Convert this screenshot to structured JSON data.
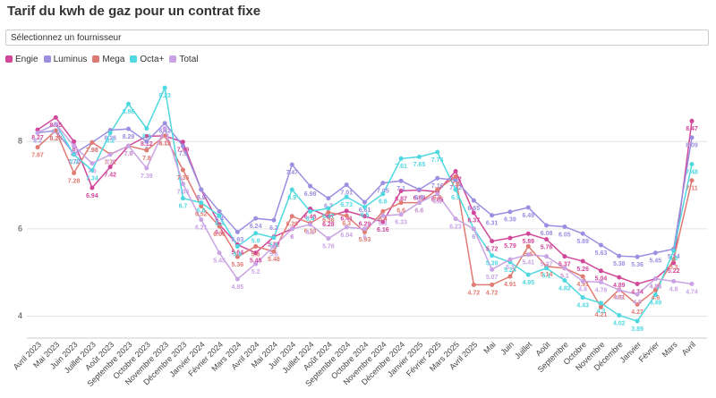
{
  "chart_data": {
    "type": "line",
    "title": "Tarif du kwh de gaz pour un contrat fixe",
    "select_placeholder": "Sélectionnez un fournisseur",
    "categories": [
      "Avril 2023",
      "Mai 2023",
      "Juin 2023",
      "Juillet 2023",
      "Août 2023",
      "Septembre 2023",
      "Octobre 2023",
      "Novembre 2023",
      "Décembre 2023",
      "Janvier 2024",
      "Février 2024",
      "Mars 2024",
      "Avril 2024",
      "Mai 2024",
      "Juin 2024",
      "Juillet 2024",
      "Août 2024",
      "Septembre 2024",
      "Octobre 2024",
      "Novembre 2024",
      "Décembre 2024",
      "Janvier 2025",
      "Février 2025",
      "Mars 2025",
      "Avril 2025",
      "Mai",
      "Juin",
      "Juillet",
      "Août",
      "Septembre",
      "Octobre",
      "Novembre",
      "Décembre",
      "Janvier",
      "Février",
      "Mars",
      "Avril"
    ],
    "ylim": [
      3.5,
      9.5
    ],
    "yticks": [
      4,
      6,
      8
    ],
    "grid": true,
    "series": [
      {
        "name": "Engie",
        "color": "#d1489b",
        "values": [
          8.27,
          8.55,
          8.0,
          6.94,
          7.42,
          7.9,
          8.12,
          8.13,
          7.99,
          6.9,
          6.1,
          5.64,
          5.45,
          5.82,
          6.0,
          6.46,
          6.28,
          6.41,
          6.29,
          6.16,
          6.87,
          6.89,
          6.85,
          7.32,
          6.37,
          5.72,
          5.79,
          5.89,
          5.76,
          5.37,
          5.26,
          5.04,
          4.89,
          4.74,
          4.86,
          5.22,
          8.47
        ]
      },
      {
        "name": "Luminus",
        "color": "#9a8fe0",
        "values": [
          8.2,
          8.25,
          7.72,
          7.98,
          8.26,
          8.29,
          8.0,
          8.42,
          7.9,
          6.9,
          6.4,
          5.93,
          6.24,
          6.2,
          7.47,
          6.98,
          6.7,
          7.01,
          6.61,
          7.05,
          7.1,
          6.9,
          7.16,
          7.12,
          6.65,
          6.31,
          6.39,
          6.49,
          6.08,
          6.05,
          5.89,
          5.63,
          5.38,
          5.36,
          5.45,
          5.54,
          8.09
        ]
      },
      {
        "name": "Mega",
        "color": "#e07b73",
        "values": [
          7.87,
          8.25,
          7.28,
          7.98,
          7.71,
          7.9,
          7.8,
          8.13,
          7.35,
          6.52,
          6.06,
          5.36,
          5.6,
          5.48,
          6.29,
          6.13,
          6.38,
          6.3,
          5.93,
          6.4,
          6.6,
          6.6,
          6.9,
          7.2,
          4.72,
          4.72,
          4.91,
          5.6,
          5.14,
          5.1,
          4.91,
          4.21,
          4.61,
          4.27,
          4.6,
          5.3,
          7.11
        ]
      },
      {
        "name": "Octa+",
        "color": "#4fd8e0",
        "values": [
          8.2,
          8.4,
          7.7,
          7.34,
          8.2,
          8.86,
          8.3,
          9.23,
          6.7,
          6.6,
          6.3,
          5.6,
          5.9,
          5.8,
          6.9,
          6.4,
          6.47,
          6.73,
          6.5,
          6.8,
          7.61,
          7.65,
          7.76,
          6.9,
          6.0,
          5.39,
          5.24,
          4.95,
          5.1,
          4.82,
          4.43,
          4.3,
          4.02,
          3.89,
          4.49,
          5.5,
          7.48
        ]
      },
      {
        "name": "Total",
        "color": "#c9a3e3",
        "values": [
          8.2,
          8.4,
          7.9,
          7.5,
          7.7,
          7.9,
          7.39,
          8.3,
          7.03,
          6.21,
          5.45,
          4.85,
          5.2,
          5.6,
          6.0,
          6.1,
          5.78,
          6.04,
          6.0,
          6.3,
          6.33,
          6.6,
          6.8,
          6.23,
          6.0,
          5.07,
          5.3,
          5.41,
          5.37,
          5.1,
          4.8,
          4.78,
          4.6,
          4.5,
          4.86,
          4.8,
          4.74
        ]
      }
    ]
  }
}
